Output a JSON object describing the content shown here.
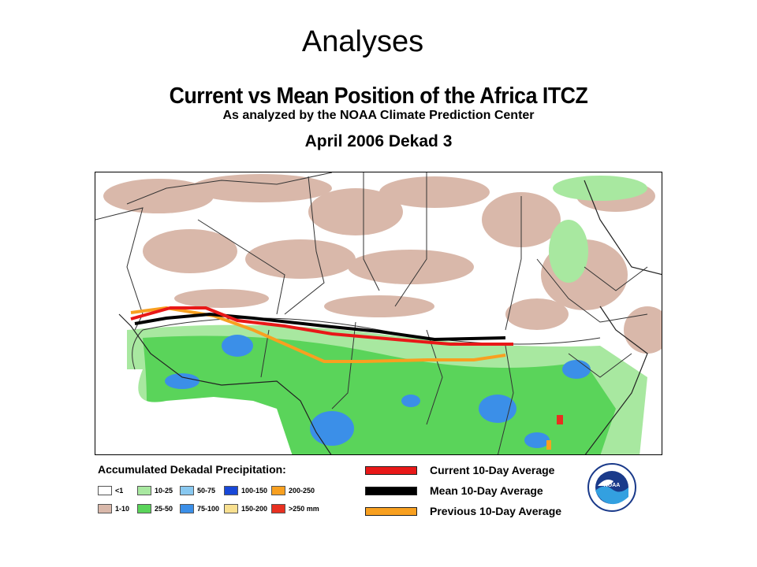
{
  "slide": {
    "title": "Analyses"
  },
  "figure": {
    "title": "Current vs Mean Position of the Africa ITCZ",
    "subtitle": "As analyzed by the NOAA Climate Prediction Center",
    "period": "April 2006 Dekad 3"
  },
  "legend": {
    "title": "Accumulated Dekadal Precipitation:",
    "precip_classes": [
      {
        "label": "<1",
        "color": "#ffffff"
      },
      {
        "label": "1-10",
        "color": "#d9b8aa"
      },
      {
        "label": "10-25",
        "color": "#a8e8a0"
      },
      {
        "label": "25-50",
        "color": "#5ad45a"
      },
      {
        "label": "50-75",
        "color": "#88c8f0"
      },
      {
        "label": "75-100",
        "color": "#3b8fe8"
      },
      {
        "label": "100-150",
        "color": "#1848d8"
      },
      {
        "label": "150-200",
        "color": "#f8e090"
      },
      {
        "label": "200-250",
        "color": "#f8a020"
      },
      {
        "label": ">250 mm",
        "color": "#e83020"
      }
    ],
    "lines": [
      {
        "label": "Current 10-Day Average",
        "color": "#e81818"
      },
      {
        "label": "Mean 10-Day Average",
        "color": "#000000"
      },
      {
        "label": "Previous 10-Day Average",
        "color": "#f8a020"
      }
    ]
  },
  "logo": {
    "text": "NOAA",
    "icon": "noaa-logo-icon"
  }
}
